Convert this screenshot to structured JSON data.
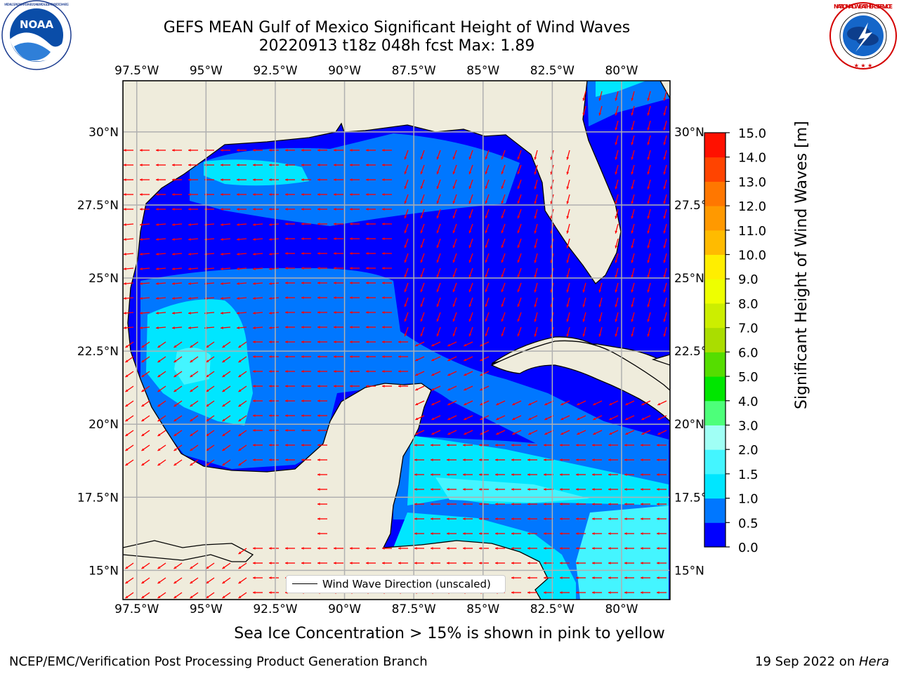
{
  "header": {
    "title_line_1": "GEFS MEAN Gulf of Mexico Significant Height of Wind Waves",
    "title_line_2": "20220913 t18z 048h fcst   Max: 1.89"
  },
  "logos": {
    "noaa_text": "NOAA",
    "noaa_ring_text": "NATIONAL OCEANIC AND ATMOSPHERIC ADMINISTRATION · U.S. DEPARTMENT OF COMMERCE",
    "nws_ring_text": "NATIONAL WEATHER SERVICE"
  },
  "map": {
    "lon_ticks": [
      "97.5°W",
      "95°W",
      "92.5°W",
      "90°W",
      "87.5°W",
      "85°W",
      "82.5°W",
      "80°W"
    ],
    "lat_ticks": [
      "30°N",
      "27.5°N",
      "25°N",
      "22.5°N",
      "20°N",
      "17.5°N",
      "15°N"
    ],
    "lon_range": [
      -98,
      -78.25
    ],
    "lat_range": [
      14,
      31.75
    ],
    "land_color": "#efecdc",
    "grid": true,
    "legend_text": "Wind Wave Direction (unscaled)",
    "arrow_color": "#ff0000"
  },
  "colorbar": {
    "label": "Significant Height of Wind Waves [m]",
    "ticks": [
      "0.0",
      "0.5",
      "1.0",
      "1.5",
      "2.0",
      "3.0",
      "4.0",
      "5.0",
      "6.0",
      "7.0",
      "8.0",
      "9.0",
      "10.0",
      "11.0",
      "12.0",
      "13.0",
      "14.0",
      "15.0"
    ],
    "colors": [
      "#0000ff",
      "#0077ff",
      "#00e6ff",
      "#44f5ff",
      "#a0fff5",
      "#4dff7a",
      "#00e600",
      "#55dd00",
      "#aadd00",
      "#ccee00",
      "#eeff00",
      "#ffee00",
      "#ffbb00",
      "#ff9900",
      "#ff7700",
      "#ff4400",
      "#ff1100"
    ]
  },
  "footer": {
    "note": "Sea Ice Concentration > 15% is shown in pink to yellow",
    "credit_left": "NCEP/EMC/Verification Post Processing Product Generation Branch",
    "credit_right_prefix": "19 Sep 2022 on ",
    "credit_right_machine": "Hera"
  }
}
